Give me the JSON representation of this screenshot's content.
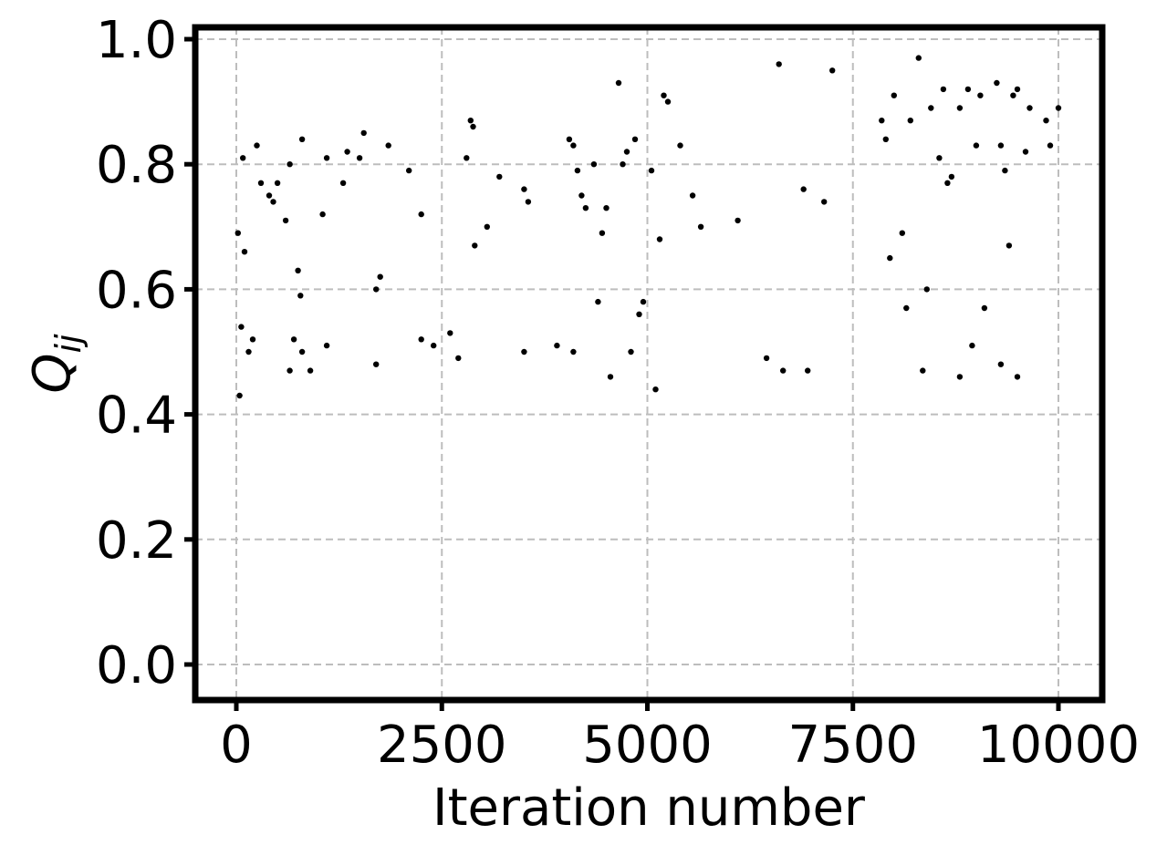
{
  "chart_data": {
    "type": "scatter",
    "xlabel": "Iteration number",
    "ylabel_main": "Q",
    "ylabel_sub": "ij",
    "xlim": [
      -200,
      10200
    ],
    "ylim": [
      -0.03,
      1.02
    ],
    "xticks": [
      0,
      2500,
      5000,
      7500,
      10000
    ],
    "xtick_labels": [
      "0",
      "2500",
      "5000",
      "7500",
      "10000"
    ],
    "yticks": [
      0.0,
      0.2,
      0.4,
      0.6,
      0.8,
      1.0
    ],
    "ytick_labels": [
      "0.0",
      "0.2",
      "0.4",
      "0.6",
      "0.8",
      "1.0"
    ],
    "grid": true,
    "marker_color": "#000000",
    "series": [
      {
        "points": [
          [
            20,
            0.69
          ],
          [
            40,
            0.43
          ],
          [
            60,
            0.54
          ],
          [
            80,
            0.81
          ],
          [
            100,
            0.66
          ],
          [
            250,
            0.83
          ],
          [
            300,
            0.77
          ],
          [
            400,
            0.75
          ],
          [
            450,
            0.74
          ],
          [
            500,
            0.77
          ],
          [
            600,
            0.71
          ],
          [
            650,
            0.8
          ],
          [
            750,
            0.63
          ],
          [
            780,
            0.59
          ],
          [
            800,
            0.84
          ],
          [
            1100,
            0.81
          ],
          [
            1050,
            0.72
          ],
          [
            1300,
            0.77
          ],
          [
            1350,
            0.82
          ],
          [
            1500,
            0.81
          ],
          [
            1550,
            0.85
          ],
          [
            1700,
            0.6
          ],
          [
            1750,
            0.62
          ],
          [
            1850,
            0.83
          ],
          [
            2100,
            0.79
          ],
          [
            2250,
            0.72
          ],
          [
            2800,
            0.81
          ],
          [
            2850,
            0.87
          ],
          [
            2880,
            0.86
          ],
          [
            2900,
            0.67
          ],
          [
            3050,
            0.7
          ],
          [
            3200,
            0.78
          ],
          [
            3500,
            0.76
          ],
          [
            3550,
            0.74
          ],
          [
            4050,
            0.84
          ],
          [
            4100,
            0.83
          ],
          [
            4150,
            0.79
          ],
          [
            4200,
            0.75
          ],
          [
            4250,
            0.73
          ],
          [
            4350,
            0.8
          ],
          [
            4400,
            0.58
          ],
          [
            4450,
            0.69
          ],
          [
            4500,
            0.73
          ],
          [
            4650,
            0.93
          ],
          [
            4700,
            0.8
          ],
          [
            4750,
            0.82
          ],
          [
            4850,
            0.84
          ],
          [
            4900,
            0.56
          ],
          [
            4950,
            0.58
          ],
          [
            5050,
            0.79
          ],
          [
            5150,
            0.68
          ],
          [
            5200,
            0.91
          ],
          [
            5250,
            0.9
          ],
          [
            5400,
            0.83
          ],
          [
            5550,
            0.75
          ],
          [
            5650,
            0.7
          ],
          [
            6100,
            0.71
          ],
          [
            6600,
            0.96
          ],
          [
            6900,
            0.76
          ],
          [
            7150,
            0.74
          ],
          [
            7250,
            0.95
          ],
          [
            7850,
            0.87
          ],
          [
            7900,
            0.84
          ],
          [
            7950,
            0.65
          ],
          [
            8000,
            0.91
          ],
          [
            8100,
            0.69
          ],
          [
            8150,
            0.57
          ],
          [
            8200,
            0.87
          ],
          [
            8300,
            0.97
          ],
          [
            8400,
            0.6
          ],
          [
            8450,
            0.89
          ],
          [
            8550,
            0.81
          ],
          [
            8600,
            0.92
          ],
          [
            8650,
            0.77
          ],
          [
            8700,
            0.78
          ],
          [
            8800,
            0.89
          ],
          [
            8900,
            0.92
          ],
          [
            8950,
            0.51
          ],
          [
            9000,
            0.83
          ],
          [
            9050,
            0.91
          ],
          [
            9100,
            0.57
          ],
          [
            9250,
            0.93
          ],
          [
            9300,
            0.83
          ],
          [
            9350,
            0.79
          ],
          [
            9400,
            0.67
          ],
          [
            9450,
            0.91
          ],
          [
            9500,
            0.92
          ],
          [
            9600,
            0.82
          ],
          [
            9650,
            0.89
          ],
          [
            9850,
            0.87
          ],
          [
            9900,
            0.83
          ],
          [
            10000,
            0.89
          ],
          [
            150,
            0.5
          ],
          [
            200,
            0.52
          ],
          [
            650,
            0.47
          ],
          [
            700,
            0.52
          ],
          [
            800,
            0.5
          ],
          [
            900,
            0.47
          ],
          [
            1100,
            0.51
          ],
          [
            1700,
            0.48
          ],
          [
            2250,
            0.52
          ],
          [
            2400,
            0.51
          ],
          [
            2600,
            0.53
          ],
          [
            2700,
            0.49
          ],
          [
            3500,
            0.5
          ],
          [
            3900,
            0.51
          ],
          [
            4100,
            0.5
          ],
          [
            4550,
            0.46
          ],
          [
            4800,
            0.5
          ],
          [
            5100,
            0.44
          ],
          [
            6450,
            0.49
          ],
          [
            6650,
            0.47
          ],
          [
            6950,
            0.47
          ],
          [
            8350,
            0.47
          ],
          [
            8800,
            0.46
          ],
          [
            9300,
            0.48
          ],
          [
            9500,
            0.46
          ]
        ]
      }
    ]
  }
}
